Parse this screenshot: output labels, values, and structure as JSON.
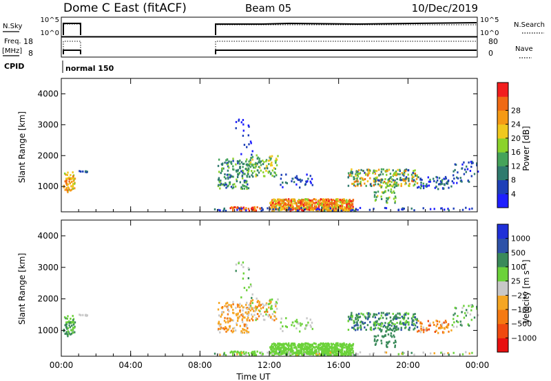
{
  "header": {
    "title": "Dome C East (fitACF)",
    "beam": "Beam 05",
    "date": "10/Dec/2019"
  },
  "housekeeping": {
    "nsky_label": "N.Sky",
    "nsky_ticks": [
      "10^5",
      "10^0"
    ],
    "nsearch_label": "N.Search",
    "nsearch_ticks": [
      "10^5",
      "10^0"
    ],
    "freq_label": "Freq.",
    "freq_unit": "[MHz]",
    "freq_ticks": [
      "18",
      "8"
    ],
    "nave_label": "Nave",
    "nave_ticks": [
      "80",
      "0"
    ],
    "cpid_label": "CPID",
    "cpid_value": "normal 150"
  },
  "colors": {
    "power": [
      "#1f1fff",
      "#1e40b8",
      "#2f7a6e",
      "#45a35a",
      "#8bd22b",
      "#f0c81e",
      "#f59a15",
      "#f06a14",
      "#f21e1e"
    ],
    "velocity": [
      "#e81010",
      "#f04a10",
      "#f57a12",
      "#f5a623",
      "#c8c8c8",
      "#6cd23a",
      "#3a8a5a",
      "#2e52a8",
      "#1f30d8"
    ]
  },
  "chart_data": [
    {
      "type": "heatmap",
      "name": "power",
      "ylabel": "Slant Range [km]",
      "xlabel": "",
      "x_ticks": [
        "00:00",
        "04:00",
        "08:00",
        "12:00",
        "16:00",
        "20:00",
        "00:00"
      ],
      "y_ticks": [
        1000,
        2000,
        3000,
        4000
      ],
      "xlim": [
        0,
        24
      ],
      "ylim": [
        180,
        4500
      ],
      "colorbar": {
        "label": "Power [dB]",
        "ticks": [
          "4",
          "8",
          "12",
          "16",
          "20",
          "24",
          "28"
        ],
        "range": [
          0,
          30
        ]
      }
    },
    {
      "type": "heatmap",
      "name": "velocity",
      "ylabel": "Slant Range [km]",
      "xlabel": "Time UT",
      "x_ticks": [
        "00:00",
        "04:00",
        "08:00",
        "12:00",
        "16:00",
        "20:00",
        "00:00"
      ],
      "y_ticks": [
        1000,
        2000,
        3000,
        4000
      ],
      "xlim": [
        0,
        24
      ],
      "ylim": [
        180,
        4500
      ],
      "colorbar": {
        "label": "Velocity [m s⁻¹]",
        "ticks": [
          "1000",
          "500",
          "100",
          "25",
          "−25",
          "−100",
          "−500",
          "−1000"
        ]
      }
    }
  ]
}
